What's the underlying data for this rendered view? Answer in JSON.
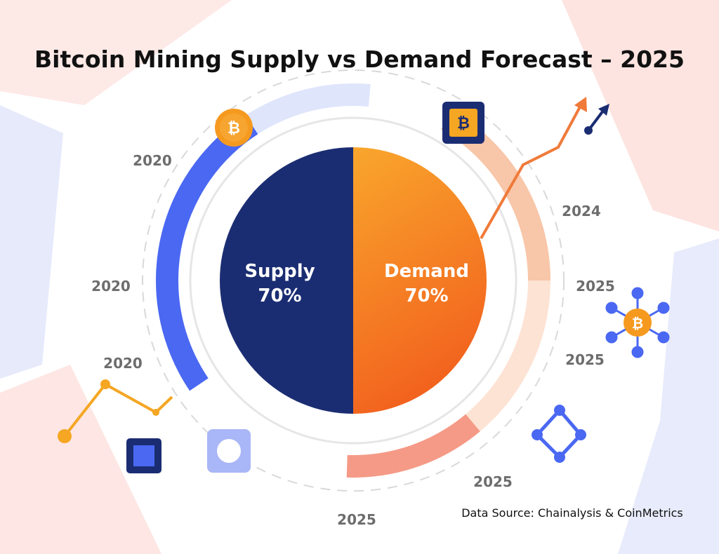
{
  "chart_data": {
    "type": "pie",
    "title": "Bitcoin Mining Supply vs Demand Forecast – 2025",
    "categories": [
      "Supply",
      "Demand"
    ],
    "values": [
      70,
      70
    ],
    "value_labels": [
      "70%",
      "70%"
    ],
    "colors": [
      "#1b2d72",
      "#f5851f"
    ],
    "annotations": [
      "2020",
      "2020",
      "2020",
      "2024",
      "2025",
      "2025",
      "2025",
      "2025"
    ],
    "source": "Data Source: Chainalysis & CoinMetrics"
  }
}
